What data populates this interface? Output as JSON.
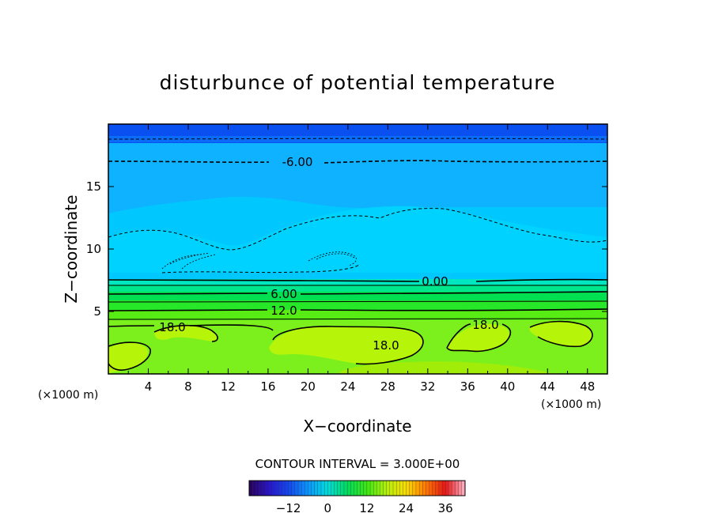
{
  "chart_data": {
    "type": "contour",
    "title": "disturbunce of potential temperature",
    "xlabel": "X−coordinate",
    "ylabel": "Z−coordinate",
    "x_unit": "(×1000 m)",
    "z_unit": "(×1000 m)",
    "xlim": [
      0,
      50
    ],
    "ylim": [
      0,
      20
    ],
    "x_ticks": [
      "4",
      "8",
      "12",
      "16",
      "20",
      "24",
      "28",
      "32",
      "36",
      "40",
      "44",
      "48"
    ],
    "y_ticks": [
      "5",
      "10",
      "15"
    ],
    "contour_interval": "CONTOUR INTERVAL = 3.000E+00",
    "contour_labels": [
      "-6.00",
      "0.00",
      "6.00",
      "12.0",
      "18.0",
      "18.0",
      "18.0"
    ],
    "colorbar": {
      "range": [
        -24,
        42
      ],
      "ticks": [
        "−12",
        "0",
        "12",
        "24",
        "36"
      ]
    },
    "fill_colors": {
      "top": "#0a50f0",
      "upper": "#0a96ff",
      "mid": "#00c8ff",
      "band_0_3": "#00e6c0",
      "band_3_6": "#00e68c",
      "band_6_12": "#00e050",
      "band_12_18": "#40ec10",
      "surface": "#a6f00a"
    },
    "grid": false,
    "legend": "colorbar-bottom"
  }
}
